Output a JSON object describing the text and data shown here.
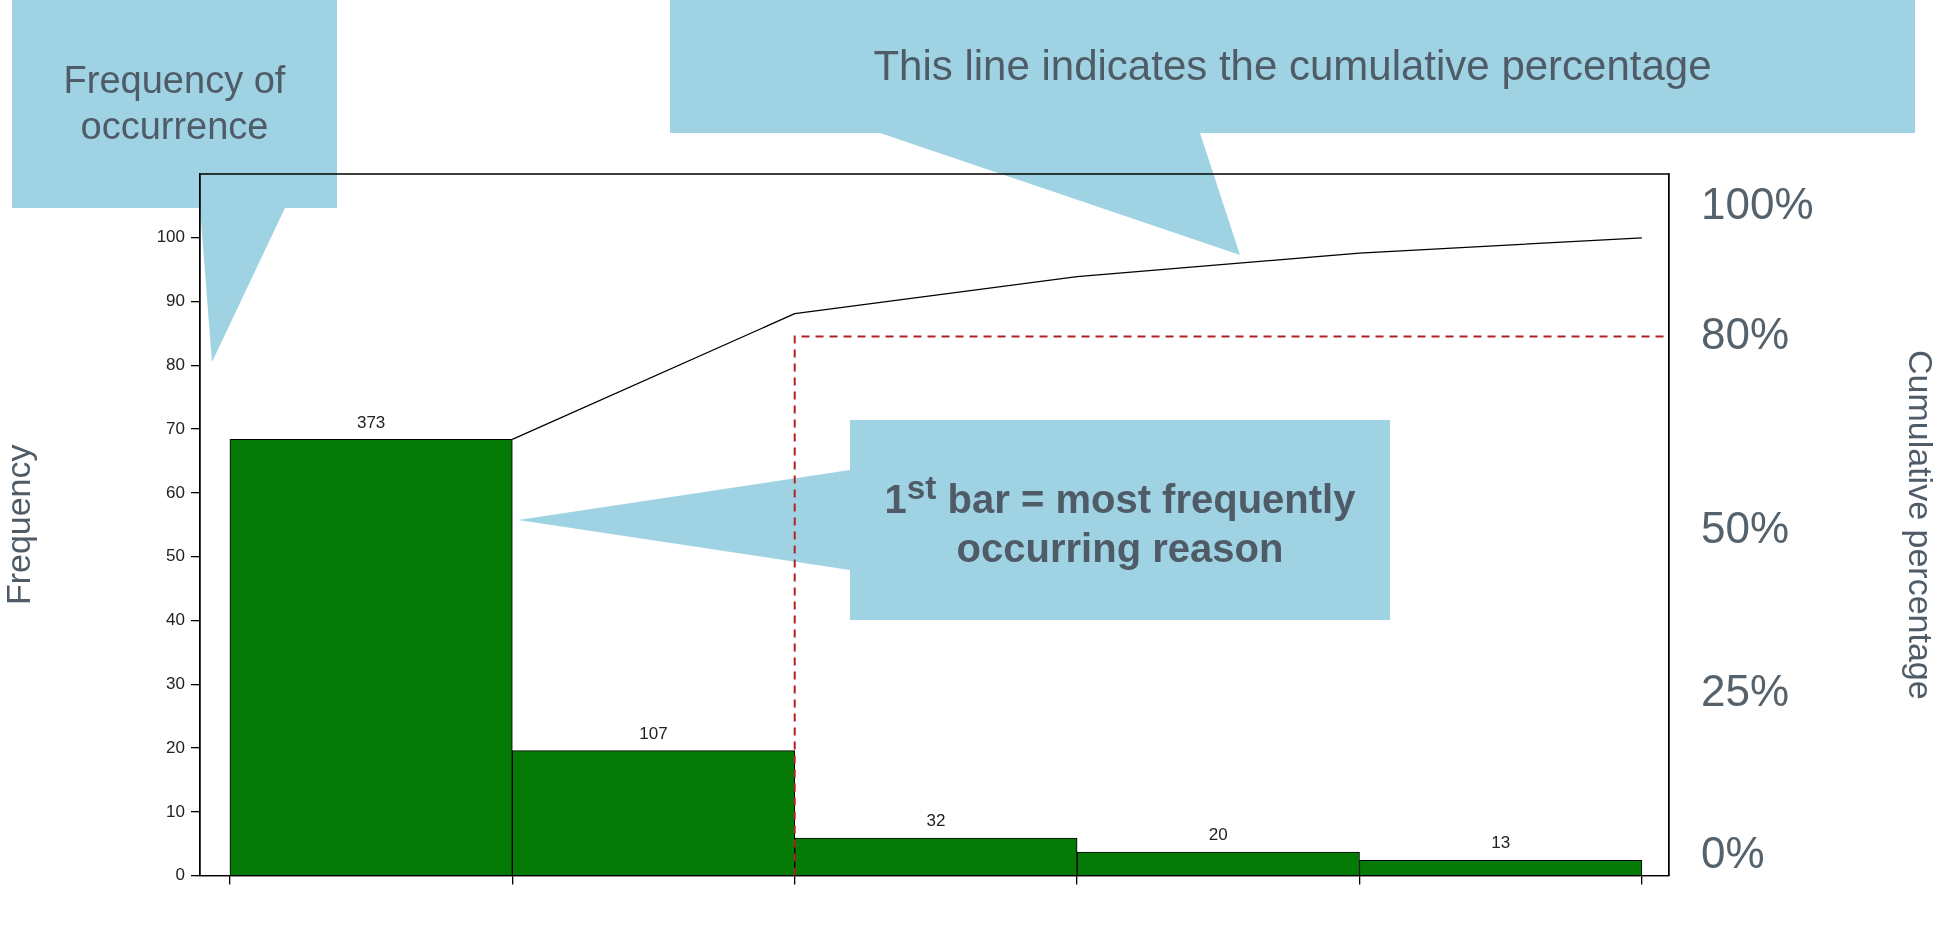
{
  "chart_data": {
    "type": "bar",
    "ylabel": "Frequency",
    "y2label": "Cumulative percentage",
    "annotations": [
      "Frequency of occurrence",
      "This line indicates the cumulative percentage",
      "1$^{st}$ bar = most frequently occurring reason",
      {
        "text": "373",
        "y": 68.4
      },
      {
        "text": "107",
        "y": 19.6
      },
      {
        "text": "32",
        "y": 5.9
      },
      {
        "text": "20",
        "y": 3.7
      },
      {
        "text": "13",
        "y": 2.4
      }
    ],
    "categories": [
      null,
      null,
      null,
      null,
      null
    ],
    "ylim": [
      0,
      110
    ],
    "yticks": [
      0,
      10,
      20,
      30,
      40,
      50,
      60,
      70,
      80,
      90,
      100
    ],
    "y2lim": [
      -3,
      105
    ],
    "y2ticks": [
      {
        "value": 0,
        "label": "0%"
      },
      {
        "value": 25,
        "label": "25%"
      },
      {
        "value": 50,
        "label": "50%"
      },
      {
        "value": 80,
        "label": "80%"
      },
      {
        "value": 100,
        "label": "100%"
      }
    ],
    "series": [
      {
        "color": "#067a06",
        "values": [
          68.4,
          19.6,
          5.9,
          3.7,
          2.4
        ]
      },
      {
        "type": "line",
        "color": "#000000",
        "values": [
          68.4,
          88.1,
          93.9,
          97.6,
          100
        ]
      }
    ],
    "ref_lines": [
      {
        "axis": "y2",
        "value": 80,
        "color": "#b22222",
        "line_style": "dashed"
      }
    ],
    "grid": false,
    "legend": false,
    "marker": "none",
    "line_style": "solid"
  }
}
